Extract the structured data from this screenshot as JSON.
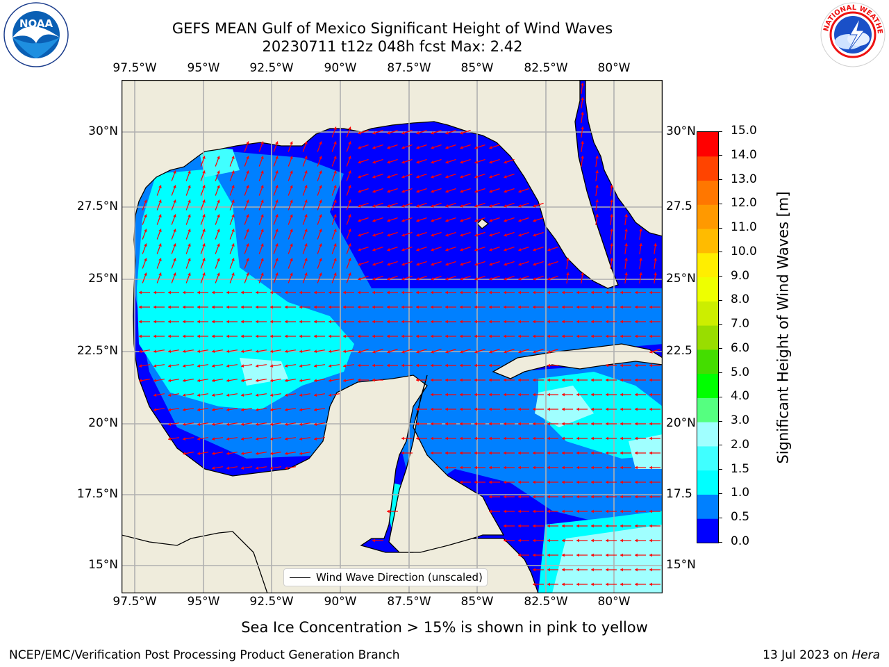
{
  "title": {
    "line1": "GEFS MEAN Gulf of Mexico Significant Height of Wind Waves",
    "line2": "20230711 t12z 048h fcst   Max: 2.42"
  },
  "logos": {
    "left": "NOAA",
    "left_ring": "NATIONAL OCEANIC AND ATMOSPHERIC ADMINISTRATION · U.S. DEPARTMENT OF COMMERCE",
    "right_ring": "NATIONAL WEATHER SERVICE"
  },
  "map": {
    "lon_labels": [
      "97.5°W",
      "95°W",
      "92.5°W",
      "90°W",
      "87.5°W",
      "85°W",
      "82.5°W",
      "80°W"
    ],
    "lat_labels_left": [
      "30°N",
      "27.5°N",
      "25°N",
      "22.5°N",
      "20°N",
      "17.5°N",
      "15°N"
    ],
    "lat_labels_right": [
      "30°N",
      "27.5",
      "25°N",
      "22.5",
      "20°N",
      "17.5",
      "15°N"
    ],
    "legend_label": "Wind Wave Direction (unscaled)",
    "land_color": "#efecdc",
    "arrow_color": "#ff0000"
  },
  "colorbar": {
    "label": "Significant Height of Wind Waves [m]",
    "tick_labels": [
      "0.0",
      "0.5",
      "1.0",
      "1.5",
      "2.0",
      "3.0",
      "4.0",
      "5.0",
      "6.0",
      "7.0",
      "8.0",
      "9.0",
      "10.0",
      "11.0",
      "12.0",
      "13.0",
      "14.0",
      "15.0"
    ],
    "colors": [
      "#0000ff",
      "#0080ff",
      "#00ffff",
      "#40ffff",
      "#a0ffff",
      "#55ff80",
      "#00ff00",
      "#44dd00",
      "#99dd00",
      "#ccee00",
      "#eeff00",
      "#ffee00",
      "#ffbb00",
      "#ff9900",
      "#ff7700",
      "#ff4400",
      "#ff0000"
    ]
  },
  "bottom_note": "Sea Ice Concentration > 15% is shown in pink to yellow",
  "footer": {
    "left": "NCEP/EMC/Verification Post Processing Product Generation Branch",
    "date": "13 Jul 2023 on ",
    "host": "Hera"
  }
}
